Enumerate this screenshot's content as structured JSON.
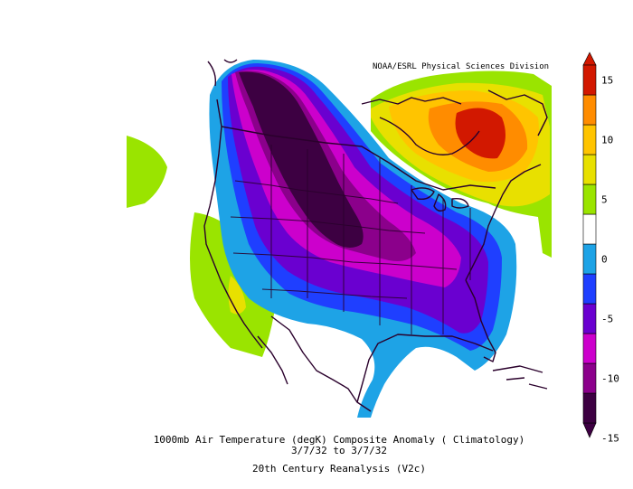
{
  "credit": "NOAA/ESRL Physical Sciences Division",
  "caption": {
    "line1": "1000mb Air Temperature (degK) Composite Anomaly ( Climatology)",
    "line2": "3/7/32  to 3/7/32",
    "line3": "20th Century Reanalysis (V2c)"
  },
  "colorbar": {
    "ticks": [
      "15",
      "10",
      "5",
      "0",
      "-5",
      "-10",
      "-15"
    ],
    "colors": [
      "#3d0042",
      "#8b008b",
      "#cc00cc",
      "#6a00d0",
      "#1f3fff",
      "#1ea3e6",
      "#ffffff",
      "#9ae400",
      "#e8e000",
      "#ffc400",
      "#ff8c00",
      "#d21800"
    ]
  },
  "colors": {
    "line": "#2a002c",
    "contour_dark": "#3d0042"
  }
}
